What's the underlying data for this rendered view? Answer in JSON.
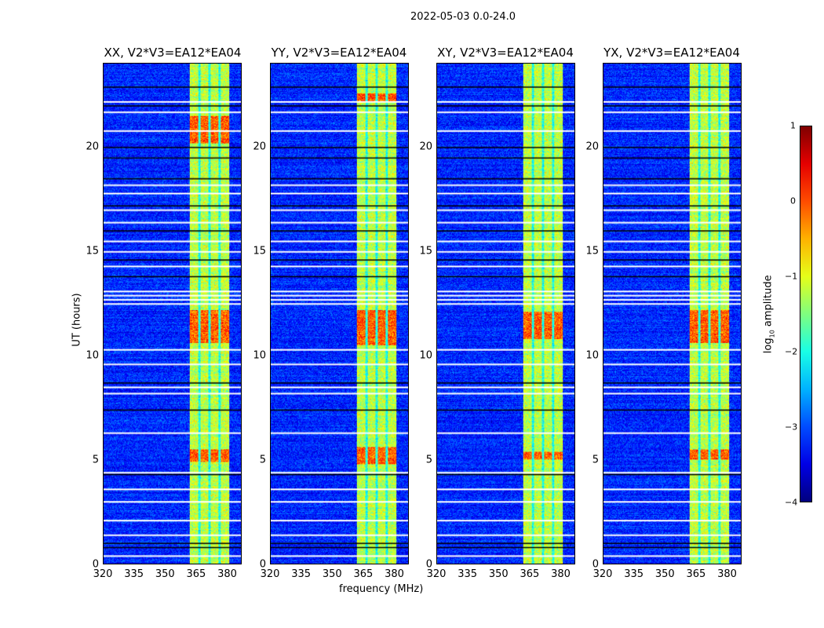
{
  "title": "2022-05-03 0.0-24.0",
  "chart_data": {
    "type": "heatmap",
    "title": "2022-05-03 0.0-24.0",
    "xlabel": "frequency (MHz)",
    "ylabel": "UT (hours)",
    "xlim": [
      320,
      387
    ],
    "ylim": [
      0,
      24
    ],
    "xticks": [
      "320",
      "335",
      "350",
      "365",
      "380"
    ],
    "yticks": [
      "0",
      "5",
      "10",
      "15",
      "20"
    ],
    "panels": [
      {
        "title": "XX, V2*V3=EA12*EA04",
        "hot_hours": [
          [
            10.6,
            12.2
          ],
          [
            4.9,
            5.5
          ],
          [
            20.2,
            21.5
          ]
        ]
      },
      {
        "title": "YY, V2*V3=EA12*EA04",
        "hot_hours": [
          [
            10.5,
            12.2
          ],
          [
            4.8,
            5.6
          ],
          [
            22.2,
            22.6
          ]
        ]
      },
      {
        "title": "XY, V2*V3=EA12*EA04",
        "hot_hours": [
          [
            10.8,
            12.1
          ],
          [
            5.0,
            5.4
          ]
        ]
      },
      {
        "title": "YX, V2*V3=EA12*EA04",
        "hot_hours": [
          [
            10.6,
            12.2
          ],
          [
            5.0,
            5.5
          ]
        ]
      }
    ],
    "background_log_amp": -3.2,
    "rfi_band_mhz": [
      [
        362,
        366
      ],
      [
        367,
        371
      ],
      [
        372,
        376
      ],
      [
        377,
        381
      ]
    ],
    "rfi_band_log_amp": -1.0,
    "flagged_hours_white": [
      0.4,
      1.4,
      2.1,
      3.0,
      3.6,
      4.4,
      6.3,
      8.2,
      8.5,
      9.6,
      10.3,
      12.5,
      12.7,
      12.9,
      13.1,
      14.3,
      15.0,
      15.5,
      16.4,
      17.0,
      17.8,
      18.2,
      20.8,
      21.7,
      22.2
    ],
    "flagged_hours_black": [
      0.8,
      1.0,
      4.3,
      7.4,
      8.7,
      13.8,
      14.6,
      16.0,
      17.2,
      18.5,
      19.5,
      20.0,
      22.0,
      22.9
    ],
    "colorbar": {
      "label": "log10 amplitude",
      "label_main": "log",
      "label_sub": "10",
      "label_rest": " amplitude",
      "range": [
        -4,
        1
      ],
      "ticks": [
        "1",
        "0",
        "−1",
        "−2",
        "−3",
        "−4"
      ],
      "colormap": "jet"
    }
  }
}
